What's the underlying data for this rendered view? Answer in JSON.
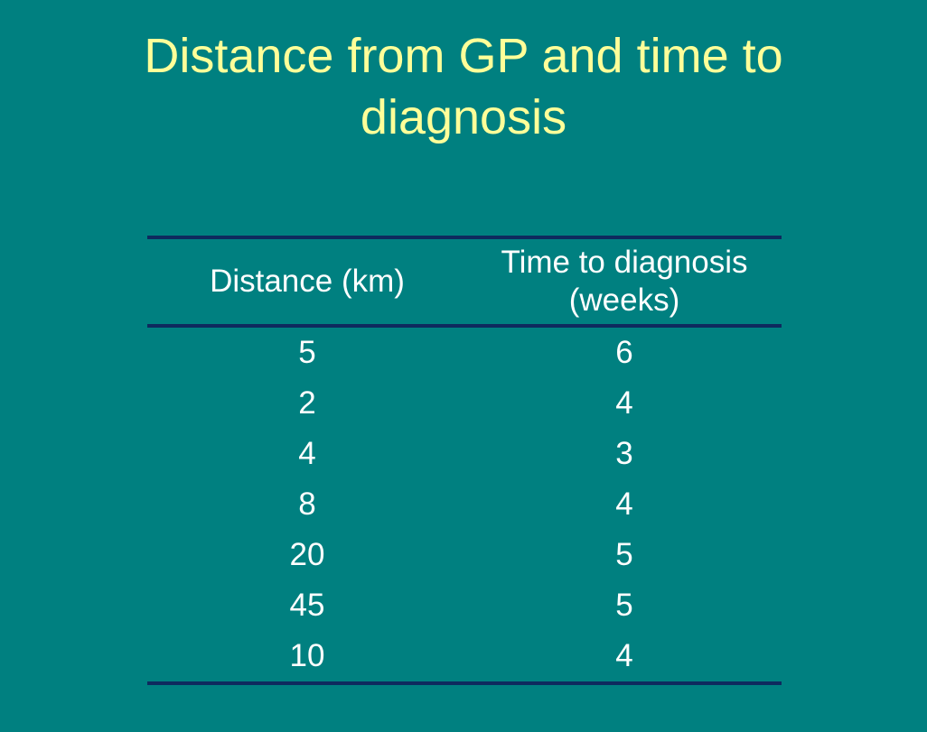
{
  "slide": {
    "title_line1": "Distance from GP and time to",
    "title_line2": "diagnosis"
  },
  "table": {
    "headers": {
      "distance": "Distance (km)",
      "time_line1": "Time to diagnosis",
      "time_line2": "(weeks)"
    },
    "rows": [
      {
        "distance": "5",
        "time": "6"
      },
      {
        "distance": "2",
        "time": "4"
      },
      {
        "distance": "4",
        "time": "3"
      },
      {
        "distance": "8",
        "time": "4"
      },
      {
        "distance": "20",
        "time": "5"
      },
      {
        "distance": "45",
        "time": "5"
      },
      {
        "distance": "10",
        "time": "4"
      }
    ]
  },
  "colors": {
    "background": "#008080",
    "title": "#FFFF99",
    "text": "#FFFFFF",
    "rule": "#0E2A5E"
  }
}
